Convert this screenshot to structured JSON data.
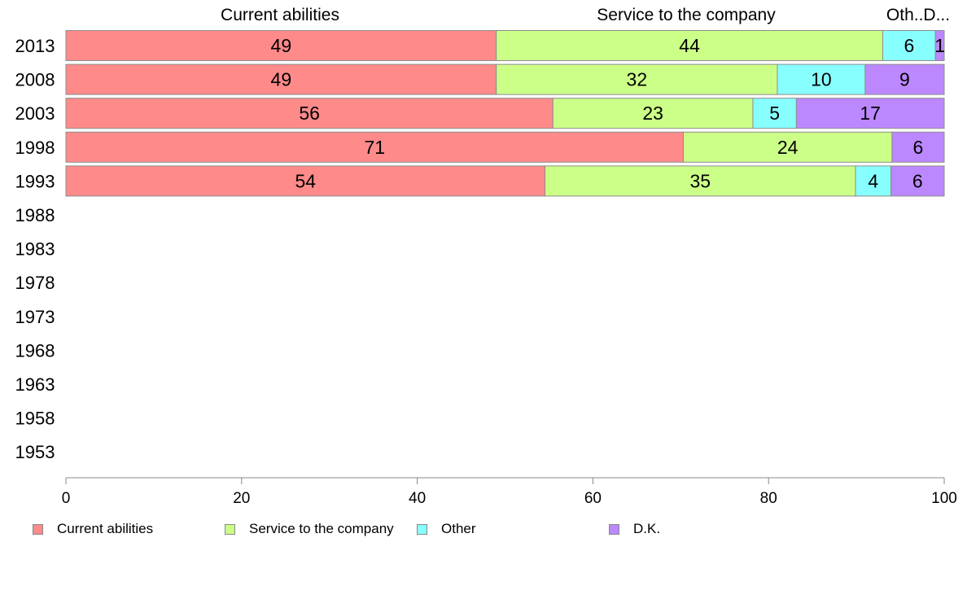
{
  "chart_data": {
    "type": "bar",
    "orientation": "horizontal",
    "stacked": true,
    "categories": [
      "2013",
      "2008",
      "2003",
      "1998",
      "1993",
      "1988",
      "1983",
      "1978",
      "1973",
      "1968",
      "1963",
      "1958",
      "1953"
    ],
    "series": [
      {
        "name": "Current abilities",
        "color": "#ff8a8a",
        "values": [
          49,
          49,
          56,
          71,
          54,
          null,
          null,
          null,
          null,
          null,
          null,
          null,
          null
        ]
      },
      {
        "name": "Service to the company",
        "color": "#ccff88",
        "values": [
          44,
          32,
          23,
          24,
          35,
          null,
          null,
          null,
          null,
          null,
          null,
          null,
          null
        ]
      },
      {
        "name": "Other",
        "color": "#88ffff",
        "values": [
          6,
          10,
          5,
          0,
          4,
          null,
          null,
          null,
          null,
          null,
          null,
          null,
          null
        ]
      },
      {
        "name": "D.K.",
        "color": "#bb88ff",
        "values": [
          1,
          9,
          17,
          6,
          6,
          null,
          null,
          null,
          null,
          null,
          null,
          null,
          null
        ]
      }
    ],
    "top_labels": [
      "Current abilities",
      "Service to the company",
      "Oth..D..."
    ],
    "x_ticks": [
      0,
      20,
      40,
      60,
      80,
      100
    ],
    "xlim": [
      0,
      100
    ],
    "legend_position": "bottom",
    "grid": false
  }
}
